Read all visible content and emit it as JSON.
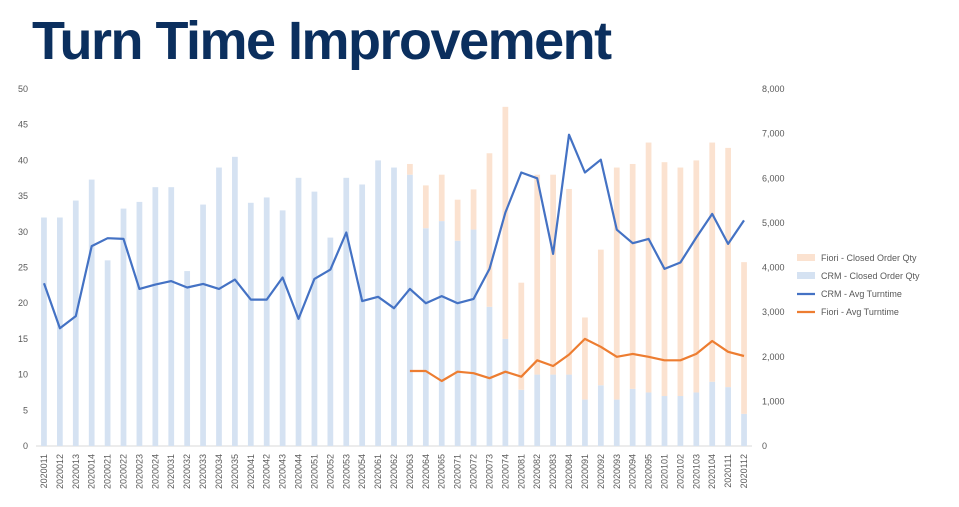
{
  "title": "Turn Time Improvement",
  "chart_data": {
    "type": "bar",
    "x": [
      "2020011",
      "2020012",
      "2020013",
      "2020014",
      "2020021",
      "2020022",
      "2020023",
      "2020024",
      "2020031",
      "2020032",
      "2020033",
      "2020034",
      "2020035",
      "2020041",
      "2020042",
      "2020043",
      "2020044",
      "2020051",
      "2020052",
      "2020053",
      "2020054",
      "2020061",
      "2020062",
      "2020063",
      "2020064",
      "2020065",
      "2020071",
      "2020072",
      "2020073",
      "2020074",
      "2020081",
      "2020082",
      "2020083",
      "2020084",
      "2020091",
      "2020092",
      "2020093",
      "2020094",
      "2020095",
      "2020101",
      "2020102",
      "2020103",
      "2020104",
      "2020111",
      "2020112"
    ],
    "y_left_ticks": [
      "0",
      "5",
      "10",
      "15",
      "20",
      "25",
      "30",
      "35",
      "40",
      "45",
      "50"
    ],
    "y_right_ticks": [
      "0",
      "1,000",
      "2,000",
      "3,000",
      "4,000",
      "5,000",
      "6,000",
      "7,000",
      "8,000"
    ],
    "y_left_range": [
      0,
      50
    ],
    "y_right_range": [
      0,
      8000
    ],
    "grid": false,
    "legend_position": "right",
    "series": [
      {
        "name": "Fiori - Closed Order Qty",
        "kind": "bar",
        "axis": "right",
        "stacked": true,
        "color": "#fbe2d0",
        "values": [
          0,
          0,
          0,
          0,
          0,
          0,
          0,
          0,
          0,
          0,
          0,
          0,
          0,
          0,
          0,
          0,
          0,
          0,
          0,
          0,
          0,
          0,
          0,
          240,
          960,
          1040,
          920,
          900,
          3440,
          5200,
          2400,
          4480,
          4480,
          4160,
          1840,
          3040,
          5200,
          5040,
          5600,
          5240,
          5120,
          5200,
          5360,
          5360,
          3400
        ]
      },
      {
        "name": "CRM - Closed Order Qty",
        "kind": "bar",
        "axis": "right",
        "stacked": true,
        "color": "#d5e2f2",
        "values": [
          5120,
          5120,
          5500,
          5970,
          4160,
          5320,
          5470,
          5800,
          5800,
          3920,
          5410,
          6240,
          6480,
          5450,
          5570,
          5280,
          6010,
          5700,
          4670,
          6010,
          5860,
          6400,
          6240,
          6080,
          4880,
          5040,
          4600,
          4850,
          3120,
          2400,
          1260,
          1600,
          1600,
          1600,
          1040,
          1360,
          1040,
          1280,
          1200,
          1120,
          1120,
          1200,
          1440,
          1320,
          720
        ]
      },
      {
        "name": "CRM - Avg Turntime",
        "kind": "line",
        "axis": "left",
        "color": "#4472c4",
        "values": [
          22.8,
          16.5,
          18.2,
          28.0,
          29.1,
          29.0,
          22.0,
          22.6,
          23.1,
          22.2,
          22.7,
          22.0,
          23.3,
          20.5,
          20.5,
          23.6,
          17.8,
          23.4,
          24.7,
          29.9,
          20.3,
          20.9,
          19.3,
          22.0,
          20.0,
          21.0,
          20.0,
          20.6,
          24.8,
          32.7,
          38.3,
          37.5,
          26.9,
          43.6,
          38.3,
          40.1,
          30.3,
          28.4,
          29.0,
          24.8,
          25.7,
          29.2,
          32.5,
          28.3,
          31.6
        ]
      },
      {
        "name": "Fiori - Avg Turntime",
        "kind": "line",
        "axis": "left",
        "color": "#ed7d31",
        "values": [
          null,
          null,
          null,
          null,
          null,
          null,
          null,
          null,
          null,
          null,
          null,
          null,
          null,
          null,
          null,
          null,
          null,
          null,
          null,
          null,
          null,
          null,
          null,
          10.5,
          10.5,
          9.1,
          10.4,
          10.2,
          9.5,
          10.4,
          9.7,
          12.0,
          11.2,
          12.8,
          15.0,
          13.9,
          12.5,
          12.9,
          12.5,
          12.0,
          12.0,
          12.9,
          14.7,
          13.2,
          12.6
        ]
      }
    ]
  }
}
